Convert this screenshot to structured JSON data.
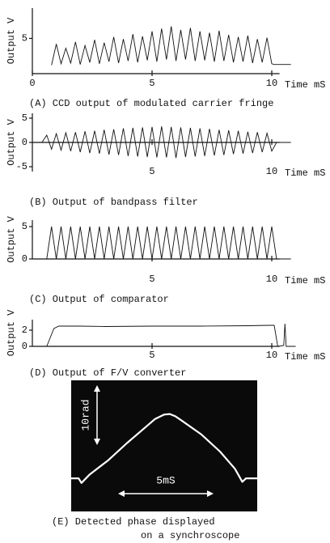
{
  "chart_data": [
    {
      "type": "line",
      "title": "(A) CCD output of modulated carrier fringe",
      "xlabel": "Time mS",
      "ylabel": "Output V",
      "xlim": [
        0,
        11
      ],
      "ylim": [
        0,
        9.3
      ],
      "xticks": [
        0,
        5,
        10
      ],
      "yticks": [
        5
      ],
      "color": "#111111",
      "x": [
        0.8,
        1.0,
        1.2,
        1.4,
        1.6,
        1.8,
        2.0,
        2.2,
        2.4,
        2.6,
        2.8,
        3.0,
        3.2,
        3.4,
        3.6,
        3.8,
        4.0,
        4.2,
        4.4,
        4.6,
        4.8,
        5.0,
        5.2,
        5.4,
        5.6,
        5.8,
        6.0,
        6.2,
        6.4,
        6.6,
        6.8,
        7.0,
        7.2,
        7.4,
        7.6,
        7.8,
        8.0,
        8.2,
        8.4,
        8.6,
        8.8,
        9.0,
        9.2,
        9.4,
        9.6,
        9.8,
        10.0,
        10.1,
        10.8
      ],
      "values": [
        1.2,
        4.2,
        1.4,
        3.6,
        1.5,
        4.5,
        1.3,
        4.0,
        1.6,
        4.8,
        1.4,
        4.4,
        1.7,
        5.2,
        1.5,
        4.9,
        1.8,
        5.6,
        1.6,
        5.3,
        1.9,
        6.0,
        1.7,
        6.4,
        2.0,
        6.7,
        1.8,
        6.2,
        2.0,
        6.5,
        1.8,
        6.0,
        1.9,
        5.8,
        1.7,
        6.1,
        1.8,
        5.5,
        1.6,
        5.2,
        1.7,
        5.4,
        1.5,
        4.9,
        1.6,
        5.1,
        1.4,
        1.3,
        1.3
      ]
    },
    {
      "type": "line",
      "title": "(B) Output of bandpass filter",
      "xlabel": "Time mS",
      "ylabel": "Output V",
      "xlim": [
        0,
        11
      ],
      "ylim": [
        -6,
        6
      ],
      "xticks": [
        5,
        10
      ],
      "yticks": [
        5,
        0,
        -5
      ],
      "color": "#111111",
      "x": [
        0.0,
        0.4,
        0.6,
        0.8,
        1.0,
        1.2,
        1.4,
        1.6,
        1.8,
        2.0,
        2.2,
        2.4,
        2.6,
        2.8,
        3.0,
        3.2,
        3.4,
        3.6,
        3.8,
        4.0,
        4.2,
        4.4,
        4.6,
        4.8,
        5.0,
        5.2,
        5.4,
        5.6,
        5.8,
        6.0,
        6.2,
        6.4,
        6.6,
        6.8,
        7.0,
        7.2,
        7.4,
        7.6,
        7.8,
        8.0,
        8.2,
        8.4,
        8.6,
        8.8,
        9.0,
        9.2,
        9.4,
        9.6,
        9.8,
        10.0,
        10.2,
        10.8
      ],
      "values": [
        0,
        0,
        1.5,
        -1.4,
        1.8,
        -1.6,
        2.0,
        -1.8,
        2.1,
        -2.0,
        2.3,
        -2.2,
        2.4,
        -2.3,
        2.6,
        -2.5,
        2.7,
        -2.6,
        2.9,
        -2.8,
        3.0,
        -2.9,
        3.1,
        -3.0,
        3.2,
        -3.1,
        3.3,
        -3.1,
        3.2,
        -3.2,
        3.1,
        -3.0,
        3.0,
        -2.9,
        2.9,
        -2.8,
        2.8,
        -2.7,
        2.6,
        -2.6,
        2.5,
        -2.4,
        2.4,
        -2.3,
        2.2,
        -2.2,
        2.1,
        -2.0,
        1.9,
        -1.8,
        0,
        0
      ]
    },
    {
      "type": "line",
      "title": "(C) Output of comparator",
      "xlabel": "Time mS",
      "ylabel": "Output V",
      "xlim": [
        0,
        11
      ],
      "ylim": [
        0,
        6
      ],
      "xticks": [
        5,
        10
      ],
      "yticks": [
        0,
        5
      ],
      "color": "#111111",
      "x": [
        0.6,
        0.8,
        1.0,
        1.2,
        1.4,
        1.6,
        1.8,
        2.0,
        2.2,
        2.4,
        2.6,
        2.8,
        3.0,
        3.2,
        3.4,
        3.6,
        3.8,
        4.0,
        4.2,
        4.4,
        4.6,
        4.8,
        5.0,
        5.2,
        5.4,
        5.6,
        5.8,
        6.0,
        6.2,
        6.4,
        6.6,
        6.8,
        7.0,
        7.2,
        7.4,
        7.6,
        7.8,
        8.0,
        8.2,
        8.4,
        8.6,
        8.8,
        9.0,
        9.2,
        9.4,
        9.6,
        9.8,
        10.0,
        10.2,
        10.8
      ],
      "values": [
        0,
        5,
        0,
        5,
        0,
        5,
        0,
        5,
        0,
        5,
        0,
        5,
        0,
        5,
        0,
        5,
        0,
        5,
        0,
        5,
        0,
        5,
        0,
        5,
        0,
        5,
        0,
        5,
        0,
        5,
        0,
        5,
        0,
        5,
        0,
        5,
        0,
        5,
        0,
        5,
        0,
        5,
        0,
        5,
        0,
        5,
        0,
        5,
        0,
        0
      ]
    },
    {
      "type": "line",
      "title": "(D) Output of F/V converter",
      "xlabel": "Time mS",
      "ylabel": "Output V",
      "xlim": [
        0,
        11
      ],
      "ylim": [
        0,
        3.3
      ],
      "xticks": [
        5,
        10
      ],
      "yticks": [
        0,
        2
      ],
      "color": "#111111",
      "x": [
        0.6,
        0.9,
        1.1,
        2.0,
        3.0,
        5.0,
        7.0,
        9.0,
        9.9,
        10.1,
        10.25,
        10.5,
        10.55,
        10.6,
        11.0
      ],
      "values": [
        0,
        2.2,
        2.5,
        2.5,
        2.45,
        2.5,
        2.5,
        2.55,
        2.6,
        2.6,
        0,
        0.1,
        2.8,
        0,
        0
      ]
    },
    {
      "type": "scope",
      "title": [
        "(E) Detected phase displayed",
        "on a synchroscope"
      ],
      "annotations": [
        "10rad",
        "5mS"
      ],
      "xlim": [
        0,
        10
      ],
      "ylim": [
        0,
        23
      ],
      "color": "#ffffff",
      "x": [
        0,
        0.4,
        0.55,
        1,
        2,
        3,
        4,
        4.5,
        5,
        5.3,
        5.6,
        6,
        7,
        8,
        8.8,
        9.2,
        9.4,
        10
      ],
      "values": [
        5.8,
        5.8,
        5.0,
        6.5,
        9.0,
        12.0,
        14.8,
        16.2,
        17.0,
        17.1,
        16.7,
        15.8,
        13.5,
        10.5,
        7.5,
        5.2,
        5.8,
        5.8
      ]
    }
  ]
}
